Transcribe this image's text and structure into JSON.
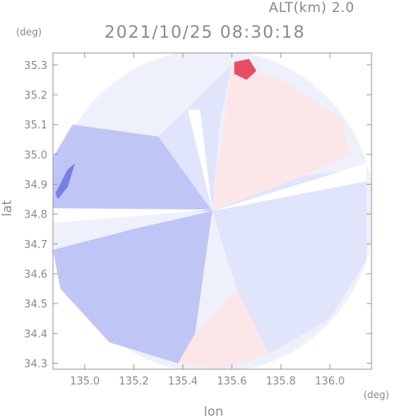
{
  "header": {
    "alt_label": "ALT(km) 2.0",
    "timestamp": "2021/10/25 08:30:18"
  },
  "axes": {
    "y_unit": "(deg)",
    "x_unit": "(deg)"
  },
  "chart_data": {
    "type": "heatmap",
    "title": "2021/10/25 08:30:18",
    "subtitle": "ALT(km) 2.0",
    "xlabel": "lon",
    "ylabel": "lat",
    "x_unit": "(deg)",
    "y_unit": "(deg)",
    "xlim": [
      134.87,
      136.17
    ],
    "ylim": [
      34.28,
      35.34
    ],
    "x_ticks": [
      135.0,
      135.2,
      135.4,
      135.6,
      135.8,
      136.0
    ],
    "x_tick_labels": [
      "135.0",
      "135.2",
      "135.4",
      "135.6",
      "135.8",
      "136.0"
    ],
    "y_ticks": [
      34.3,
      34.4,
      34.5,
      34.6,
      34.7,
      34.8,
      34.9,
      35.0,
      35.1,
      35.2,
      35.3
    ],
    "y_tick_labels": [
      "34.3",
      "34.4",
      "34.5",
      "34.6",
      "34.7",
      "34.8",
      "34.9",
      "35.0",
      "35.1",
      "35.2",
      "35.3"
    ],
    "radar_center": [
      135.52,
      34.81
    ],
    "coverage_radius_deg_lon": 0.66,
    "colors": {
      "negative_weak": "#dfe3fb",
      "negative_mid": "#b9c0f4",
      "negative_strong": "#6f78e0",
      "positive_weak": "#fde4e6",
      "positive_strong": "#e83a55",
      "axis": "#999999"
    },
    "regions": [
      {
        "name": "west-sector",
        "sign": "negative",
        "level": 0.45,
        "points": [
          [
            134.87,
            34.99
          ],
          [
            134.87,
            34.8
          ],
          [
            135.52,
            34.81
          ],
          [
            135.3,
            35.06
          ],
          [
            134.95,
            35.1
          ]
        ]
      },
      {
        "name": "north-west-sector",
        "sign": "negative",
        "level": 0.25,
        "points": [
          [
            135.52,
            34.81
          ],
          [
            135.3,
            35.06
          ],
          [
            135.45,
            35.18
          ],
          [
            135.6,
            35.3
          ],
          [
            135.55,
            35.1
          ]
        ]
      },
      {
        "name": "north-east-sector",
        "sign": "positive",
        "level": 0.25,
        "points": [
          [
            135.52,
            34.81
          ],
          [
            135.6,
            35.3
          ],
          [
            135.8,
            35.25
          ],
          [
            136.05,
            35.12
          ],
          [
            136.08,
            35.0
          ],
          [
            135.9,
            34.93
          ]
        ]
      },
      {
        "name": "east-sector",
        "sign": "negative",
        "level": 0.2,
        "points": [
          [
            135.52,
            34.81
          ],
          [
            135.9,
            34.93
          ],
          [
            136.15,
            34.95
          ],
          [
            136.15,
            34.65
          ],
          [
            136.0,
            34.45
          ],
          [
            135.75,
            34.33
          ],
          [
            135.62,
            34.55
          ]
        ]
      },
      {
        "name": "south-sector",
        "sign": "positive",
        "level": 0.25,
        "points": [
          [
            135.62,
            34.55
          ],
          [
            135.75,
            34.33
          ],
          [
            135.55,
            34.28
          ],
          [
            135.38,
            34.3
          ],
          [
            135.45,
            34.4
          ]
        ]
      },
      {
        "name": "south-west-sector",
        "sign": "negative",
        "level": 0.35,
        "points": [
          [
            135.52,
            34.81
          ],
          [
            135.45,
            34.4
          ],
          [
            135.38,
            34.3
          ],
          [
            135.1,
            34.37
          ],
          [
            134.9,
            34.55
          ],
          [
            134.87,
            34.68
          ],
          [
            135.2,
            34.75
          ]
        ]
      },
      {
        "name": "north-edge-feature",
        "sign": "positive",
        "level": 0.9,
        "points": [
          [
            135.61,
            35.31
          ],
          [
            135.67,
            35.32
          ],
          [
            135.7,
            35.28
          ],
          [
            135.66,
            35.25
          ],
          [
            135.61,
            35.27
          ]
        ]
      },
      {
        "name": "west-edge-feature",
        "sign": "negative",
        "level": 0.85,
        "points": [
          [
            134.88,
            34.87
          ],
          [
            134.93,
            34.95
          ],
          [
            134.96,
            34.97
          ],
          [
            134.93,
            34.89
          ],
          [
            134.89,
            34.85
          ]
        ]
      }
    ]
  }
}
